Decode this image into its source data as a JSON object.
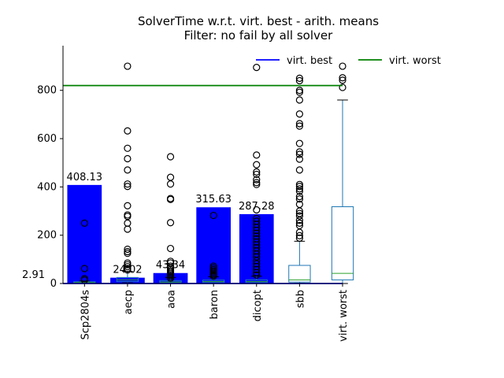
{
  "chart_data": {
    "type": "bar",
    "title": "SolverTime w.r.t. virt. best - arith. means",
    "subtitle": "Filter: no fail by all solver",
    "xlabel": "",
    "ylabel": "",
    "ylim": [
      0,
      985
    ],
    "yticks": [
      0,
      200,
      400,
      600,
      800
    ],
    "y_baseline_label": "2.91",
    "categories": [
      "Scp2804s",
      "aecp",
      "aoa",
      "baron",
      "dicopt",
      "sbb",
      "virt. worst"
    ],
    "bars": [
      {
        "category": "Scp2804s",
        "value": 408.13,
        "label": "408.13"
      },
      {
        "category": "aecp",
        "value": 24.02,
        "label": "24.02"
      },
      {
        "category": "aoa",
        "value": 43.34,
        "label": "43.34"
      },
      {
        "category": "baron",
        "value": 315.63,
        "label": "315.63"
      },
      {
        "category": "dicopt",
        "value": 287.28,
        "label": "287.28"
      }
    ],
    "boxes": [
      {
        "category": "Scp2804s",
        "q1": 2,
        "median": 4,
        "q3": 7,
        "whisker_low": 1,
        "whisker_high": 10,
        "outliers": [
          250,
          62,
          20,
          14
        ]
      },
      {
        "category": "aecp",
        "q1": 8,
        "median": 15,
        "q3": 25,
        "whisker_low": 3,
        "whisker_high": 50,
        "outliers": [
          900,
          632,
          560,
          517,
          470,
          412,
          402,
          322,
          284,
          278,
          250,
          225,
          142,
          132,
          125,
          85,
          78,
          70,
          62,
          56
        ]
      },
      {
        "category": "aoa",
        "q1": 3,
        "median": 6,
        "q3": 12,
        "whisker_low": 1,
        "whisker_high": 25,
        "outliers": [
          525,
          440,
          412,
          352,
          348,
          252,
          145,
          92,
          85,
          72,
          65,
          58,
          52,
          46,
          40,
          34,
          28,
          22
        ]
      },
      {
        "category": "baron",
        "q1": 4,
        "median": 8,
        "q3": 14,
        "whisker_low": 1,
        "whisker_high": 28,
        "outliers": [
          282,
          72,
          65,
          58,
          52,
          46,
          40,
          35,
          30
        ]
      },
      {
        "category": "dicopt",
        "q1": 4,
        "median": 8,
        "q3": 15,
        "whisker_low": 1,
        "whisker_high": 30,
        "outliers": [
          895,
          532,
          492,
          462,
          452,
          430,
          418,
          410,
          305,
          270,
          258,
          245,
          232,
          220,
          208,
          196,
          185,
          172,
          160,
          148,
          135,
          122,
          110,
          95,
          82,
          70,
          58,
          45,
          35
        ]
      },
      {
        "category": "sbb",
        "q1": 6,
        "median": 15,
        "q3": 75,
        "whisker_low": 1,
        "whisker_high": 175,
        "outliers": [
          850,
          840,
          800,
          792,
          760,
          702,
          662,
          652,
          580,
          545,
          535,
          515,
          470,
          410,
          402,
          392,
          382,
          360,
          350,
          328,
          300,
          290,
          280,
          262,
          250,
          240,
          212,
          198,
          188
        ]
      },
      {
        "category": "virt. worst",
        "q1": 15,
        "median": 42,
        "q3": 318,
        "whisker_low": 0,
        "whisker_high": 760,
        "outliers": [
          900,
          852,
          842,
          812
        ]
      }
    ],
    "lines": [
      {
        "name": "virt. best",
        "value": 0,
        "color": "#0000ff"
      },
      {
        "name": "virt. worst",
        "value": 820,
        "color": "#008000"
      }
    ],
    "legend_position": "top-right",
    "grid": false
  },
  "colors": {
    "bar": "#0000ff",
    "box": "#1f77b4",
    "median": "#2ca02c",
    "virt_best": "#0000ff",
    "virt_worst": "#008000"
  }
}
